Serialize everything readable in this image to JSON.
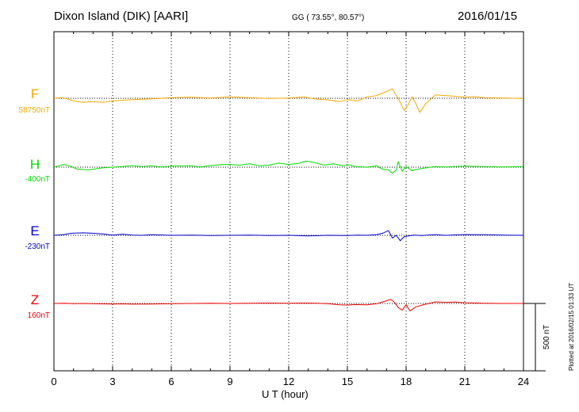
{
  "header": {
    "station": "Dixon Island (DIK)  [AARI]",
    "coords": "GG ( 73.55°,  80.57°)",
    "date": "2016/01/15"
  },
  "footer": {
    "plotted": "Plotted at 2016/02/15 01:33 UT"
  },
  "chart_data": {
    "type": "line",
    "xlabel": "U T (hour)",
    "xlim": [
      0,
      24
    ],
    "x_ticks": [
      "0",
      "3",
      "6",
      "9",
      "12",
      "15",
      "18",
      "21",
      "24"
    ],
    "scale_bar": {
      "label": "500 nT",
      "value_nT": 500
    },
    "grid": "dotted vertical lines every 3 hours; dotted baseline per component",
    "series": [
      {
        "name": "F",
        "baseline_label": "58750nT",
        "color": "#f5a800",
        "points": [
          [
            0,
            58750
          ],
          [
            0.4,
            58755
          ],
          [
            0.7,
            58745
          ],
          [
            1,
            58730
          ],
          [
            1.5,
            58720
          ],
          [
            2,
            58725
          ],
          [
            2.5,
            58720
          ],
          [
            3,
            58730
          ],
          [
            4,
            58740
          ],
          [
            5,
            58745
          ],
          [
            6,
            58755
          ],
          [
            7,
            58758
          ],
          [
            8,
            58752
          ],
          [
            9,
            58760
          ],
          [
            10,
            58755
          ],
          [
            11,
            58748
          ],
          [
            12,
            58752
          ],
          [
            12.8,
            58760
          ],
          [
            13.3,
            58745
          ],
          [
            14,
            58738
          ],
          [
            14.6,
            58725
          ],
          [
            15,
            58740
          ],
          [
            15.5,
            58730
          ],
          [
            16,
            58760
          ],
          [
            16.5,
            58770
          ],
          [
            17,
            58800
          ],
          [
            17.3,
            58820
          ],
          [
            17.5,
            58770
          ],
          [
            17.7,
            58720
          ],
          [
            17.9,
            58660
          ],
          [
            18.1,
            58700
          ],
          [
            18.3,
            58760
          ],
          [
            18.5,
            58710
          ],
          [
            18.7,
            58645
          ],
          [
            19,
            58710
          ],
          [
            19.5,
            58775
          ],
          [
            20,
            58770
          ],
          [
            20.5,
            58765
          ],
          [
            21,
            58758
          ],
          [
            21.5,
            58762
          ],
          [
            22,
            58755
          ],
          [
            23,
            58752
          ],
          [
            24,
            58748
          ]
        ]
      },
      {
        "name": "H",
        "baseline_label": "-400nT",
        "color": "#00dd00",
        "points": [
          [
            0,
            -400
          ],
          [
            0.5,
            -380
          ],
          [
            0.8,
            -390
          ],
          [
            1.2,
            -415
          ],
          [
            1.8,
            -420
          ],
          [
            2.5,
            -405
          ],
          [
            3,
            -400
          ],
          [
            3.5,
            -395
          ],
          [
            4,
            -388
          ],
          [
            4.5,
            -395
          ],
          [
            5,
            -390
          ],
          [
            5.5,
            -398
          ],
          [
            6,
            -392
          ],
          [
            7,
            -390
          ],
          [
            7.5,
            -398
          ],
          [
            8,
            -388
          ],
          [
            8.5,
            -382
          ],
          [
            9,
            -380
          ],
          [
            9.5,
            -385
          ],
          [
            10,
            -375
          ],
          [
            10.5,
            -390
          ],
          [
            11,
            -385
          ],
          [
            11.5,
            -370
          ],
          [
            12,
            -380
          ],
          [
            12.5,
            -372
          ],
          [
            12.9,
            -355
          ],
          [
            13.3,
            -365
          ],
          [
            13.8,
            -385
          ],
          [
            14.3,
            -375
          ],
          [
            14.8,
            -390
          ],
          [
            15,
            -380
          ],
          [
            15.4,
            -395
          ],
          [
            16,
            -400
          ],
          [
            16.5,
            -390
          ],
          [
            16.8,
            -415
          ],
          [
            17.1,
            -420
          ],
          [
            17.3,
            -445
          ],
          [
            17.5,
            -420
          ],
          [
            17.6,
            -360
          ],
          [
            17.8,
            -430
          ],
          [
            18,
            -395
          ],
          [
            18.3,
            -425
          ],
          [
            18.6,
            -415
          ],
          [
            19,
            -405
          ],
          [
            19.5,
            -395
          ],
          [
            20,
            -398
          ],
          [
            21,
            -392
          ],
          [
            22,
            -396
          ],
          [
            23,
            -398
          ],
          [
            24,
            -395
          ]
        ]
      },
      {
        "name": "E",
        "baseline_label": "-230nT",
        "color": "#0000cc",
        "points": [
          [
            0,
            -230
          ],
          [
            0.5,
            -225
          ],
          [
            0.9,
            -215
          ],
          [
            1.5,
            -212
          ],
          [
            2,
            -215
          ],
          [
            2.5,
            -220
          ],
          [
            3,
            -228
          ],
          [
            3.5,
            -222
          ],
          [
            4,
            -228
          ],
          [
            4.5,
            -230
          ],
          [
            5,
            -226
          ],
          [
            6,
            -230
          ],
          [
            7,
            -228
          ],
          [
            8,
            -232
          ],
          [
            9,
            -230
          ],
          [
            10,
            -228
          ],
          [
            11,
            -232
          ],
          [
            12,
            -230
          ],
          [
            13,
            -234
          ],
          [
            14,
            -230
          ],
          [
            15,
            -232
          ],
          [
            15.5,
            -228
          ],
          [
            16,
            -230
          ],
          [
            16.5,
            -225
          ],
          [
            16.8,
            -215
          ],
          [
            17.1,
            -195
          ],
          [
            17.3,
            -250
          ],
          [
            17.5,
            -230
          ],
          [
            17.7,
            -270
          ],
          [
            17.9,
            -240
          ],
          [
            18.1,
            -235
          ],
          [
            18.4,
            -228
          ],
          [
            18.8,
            -232
          ],
          [
            19.5,
            -225
          ],
          [
            20,
            -230
          ],
          [
            21,
            -225
          ],
          [
            22,
            -226
          ],
          [
            23,
            -228
          ],
          [
            24,
            -230
          ]
        ]
      },
      {
        "name": "Z",
        "baseline_label": "160nT",
        "color": "#ee0000",
        "points": [
          [
            0,
            160
          ],
          [
            0.6,
            162
          ],
          [
            1,
            158
          ],
          [
            1.5,
            160
          ],
          [
            2,
            158
          ],
          [
            3,
            156
          ],
          [
            3.5,
            157
          ],
          [
            4,
            155
          ],
          [
            5,
            156
          ],
          [
            6,
            158
          ],
          [
            7,
            160
          ],
          [
            8,
            162
          ],
          [
            9,
            160
          ],
          [
            10,
            162
          ],
          [
            11,
            163
          ],
          [
            12,
            162
          ],
          [
            13,
            163
          ],
          [
            14,
            158
          ],
          [
            14.6,
            150
          ],
          [
            15,
            148
          ],
          [
            15.4,
            152
          ],
          [
            16,
            150
          ],
          [
            16.5,
            158
          ],
          [
            17,
            180
          ],
          [
            17.2,
            190
          ],
          [
            17.4,
            170
          ],
          [
            17.6,
            130
          ],
          [
            17.8,
            110
          ],
          [
            18,
            150
          ],
          [
            18.2,
            105
          ],
          [
            18.5,
            135
          ],
          [
            19,
            155
          ],
          [
            19.5,
            172
          ],
          [
            20,
            168
          ],
          [
            20.5,
            170
          ],
          [
            21,
            165
          ],
          [
            22,
            162
          ],
          [
            23,
            160
          ],
          [
            24,
            160
          ]
        ]
      }
    ]
  }
}
